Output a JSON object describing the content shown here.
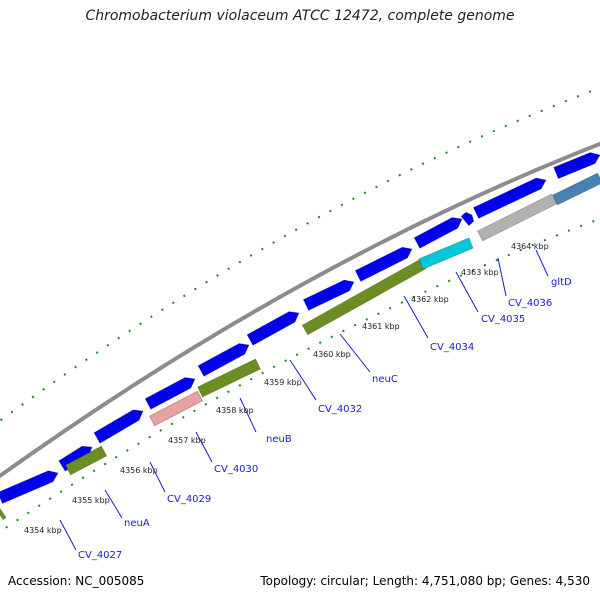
{
  "title": "Chromobacterium violaceum ATCC 12472, complete genome",
  "footer": {
    "accession": "Accession: NC_005085",
    "topology": "Topology: circular; Length: 4,751,080 bp; Genes: 4,530"
  },
  "colors": {
    "background": "#ffffff",
    "backbone": "#8c8c8c",
    "cds_forward": "#0000ee",
    "gc_ticks": "#1a8a1a",
    "feature_olive": "#6b8e23",
    "feature_pink": "#e8a0a0",
    "feature_cyan": "#00c8d8",
    "feature_gray": "#b0b0b0",
    "feature_steelblue": "#4682b4",
    "label_text": "#1a1acc",
    "tick_text": "#222222"
  },
  "position_labels": [
    "4354 kbp",
    "4355 kbp",
    "4356 kbp",
    "4357 kbp",
    "4358 kbp",
    "4359 kbp",
    "4360 kbp",
    "4361 kbp",
    "4362 kbp",
    "4363 kbp",
    "4364 kbp"
  ],
  "gene_labels": [
    "CV_4027",
    "neuA",
    "CV_4029",
    "CV_4030",
    "neuB",
    "CV_4032",
    "neuC",
    "CV_4034",
    "CV_4035",
    "CV_4036",
    "gltD"
  ]
}
